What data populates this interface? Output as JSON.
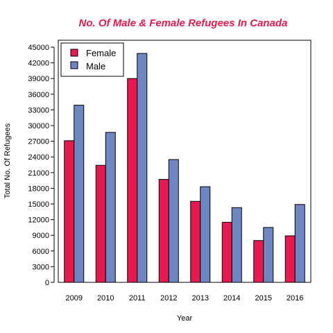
{
  "chart_data": {
    "type": "bar",
    "title": "No. Of Male & Female Refugees In Canada",
    "xlabel": "Year",
    "ylabel": "Total No. Of Refugees",
    "categories": [
      "2009",
      "2010",
      "2011",
      "2012",
      "2013",
      "2014",
      "2015",
      "2016"
    ],
    "series": [
      {
        "name": "Female",
        "values": [
          27100,
          22400,
          39000,
          19700,
          15500,
          11500,
          8000,
          8900
        ]
      },
      {
        "name": "Male",
        "values": [
          33900,
          28700,
          43800,
          23500,
          18300,
          14300,
          10500,
          14900
        ]
      }
    ],
    "ylim": [
      0,
      45000
    ],
    "yticks": [
      "0",
      "3000",
      "6000",
      "9000",
      "12000",
      "15000",
      "18000",
      "21000",
      "24000",
      "27000",
      "30000",
      "33000",
      "36000",
      "39000",
      "42000",
      "45000"
    ],
    "grid": false,
    "legend_position": "top-left"
  },
  "colors": {
    "title": "#E8194F",
    "Female": "#E8194F",
    "Male": "#6C87C2",
    "axis": "#000000"
  }
}
